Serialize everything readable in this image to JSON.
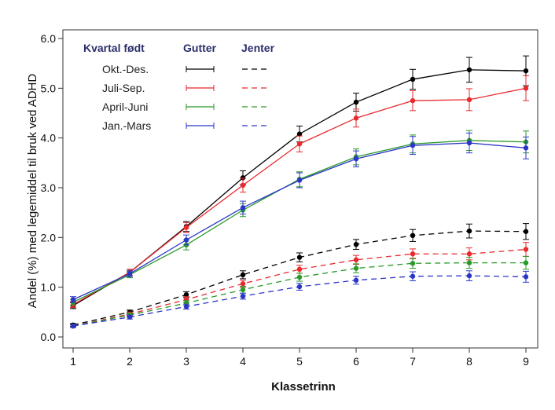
{
  "chart_data": {
    "type": "line",
    "xlabel": "Klassetrinn",
    "ylabel": "Andel (%) med legemiddel til bruk ved ADHD",
    "x": [
      1,
      2,
      3,
      4,
      5,
      6,
      7,
      8,
      9
    ],
    "xlim": [
      1,
      9
    ],
    "ylim": [
      0,
      6
    ],
    "yticks": [
      "0.0",
      "1.0",
      "2.0",
      "3.0",
      "4.0",
      "5.0",
      "6.0"
    ],
    "xticks": [
      "1",
      "2",
      "3",
      "4",
      "5",
      "6",
      "7",
      "8",
      "9"
    ],
    "grid": false,
    "legend": {
      "position": "top-left",
      "title": "Kvartal født",
      "col_boys": "Gutter",
      "col_girls": "Jenter",
      "labels": [
        "Okt.-Des.",
        "Juli-Sep.",
        "April-Juni",
        "Jan.-Mars"
      ]
    },
    "series": [
      {
        "quarter": "Okt.-Des.",
        "group": "Gutter",
        "color": "#000000",
        "dash": "solid",
        "values": [
          0.63,
          1.3,
          2.22,
          3.2,
          4.08,
          4.72,
          5.18,
          5.37,
          5.35
        ],
        "errors": [
          0.06,
          0.06,
          0.1,
          0.14,
          0.16,
          0.18,
          0.2,
          0.25,
          0.3
        ]
      },
      {
        "quarter": "Juli-Sep.",
        "group": "Gutter",
        "color": "#e8292e",
        "dash": "solid",
        "values": [
          0.65,
          1.3,
          2.2,
          3.05,
          3.88,
          4.4,
          4.75,
          4.77,
          5.0
        ],
        "errors": [
          0.06,
          0.06,
          0.1,
          0.14,
          0.16,
          0.18,
          0.2,
          0.22,
          0.25
        ]
      },
      {
        "quarter": "April-Juni",
        "group": "Gutter",
        "color": "#2a9a2a",
        "dash": "solid",
        "values": [
          0.7,
          1.25,
          1.85,
          2.55,
          3.17,
          3.62,
          3.88,
          3.95,
          3.92
        ],
        "errors": [
          0.06,
          0.06,
          0.1,
          0.13,
          0.15,
          0.16,
          0.18,
          0.2,
          0.22
        ]
      },
      {
        "quarter": "Jan.-Mars",
        "group": "Gutter",
        "color": "#2b36c9",
        "dash": "solid",
        "values": [
          0.75,
          1.27,
          1.95,
          2.6,
          3.15,
          3.58,
          3.85,
          3.9,
          3.8
        ],
        "errors": [
          0.06,
          0.06,
          0.1,
          0.13,
          0.15,
          0.16,
          0.18,
          0.2,
          0.22
        ]
      },
      {
        "quarter": "Okt.-Des.",
        "group": "Jenter",
        "color": "#000000",
        "dash": "dashed",
        "values": [
          0.24,
          0.5,
          0.85,
          1.25,
          1.6,
          1.86,
          2.04,
          2.13,
          2.12
        ],
        "errors": [
          0.03,
          0.04,
          0.06,
          0.08,
          0.09,
          0.1,
          0.12,
          0.14,
          0.16
        ]
      },
      {
        "quarter": "Juli-Sep.",
        "group": "Jenter",
        "color": "#e8292e",
        "dash": "dashed",
        "values": [
          0.22,
          0.46,
          0.75,
          1.07,
          1.36,
          1.55,
          1.67,
          1.67,
          1.76
        ],
        "errors": [
          0.03,
          0.04,
          0.06,
          0.07,
          0.08,
          0.09,
          0.1,
          0.12,
          0.14
        ]
      },
      {
        "quarter": "April-Juni",
        "group": "Jenter",
        "color": "#2a9a2a",
        "dash": "dashed",
        "values": [
          0.22,
          0.44,
          0.68,
          0.95,
          1.2,
          1.38,
          1.48,
          1.49,
          1.49
        ],
        "errors": [
          0.03,
          0.04,
          0.05,
          0.07,
          0.08,
          0.09,
          0.1,
          0.11,
          0.13
        ]
      },
      {
        "quarter": "Jan.-Mars",
        "group": "Jenter",
        "color": "#2b36c9",
        "dash": "dashed",
        "values": [
          0.22,
          0.4,
          0.61,
          0.82,
          1.01,
          1.14,
          1.22,
          1.23,
          1.21
        ],
        "errors": [
          0.03,
          0.04,
          0.05,
          0.06,
          0.07,
          0.08,
          0.09,
          0.1,
          0.11
        ]
      }
    ]
  }
}
